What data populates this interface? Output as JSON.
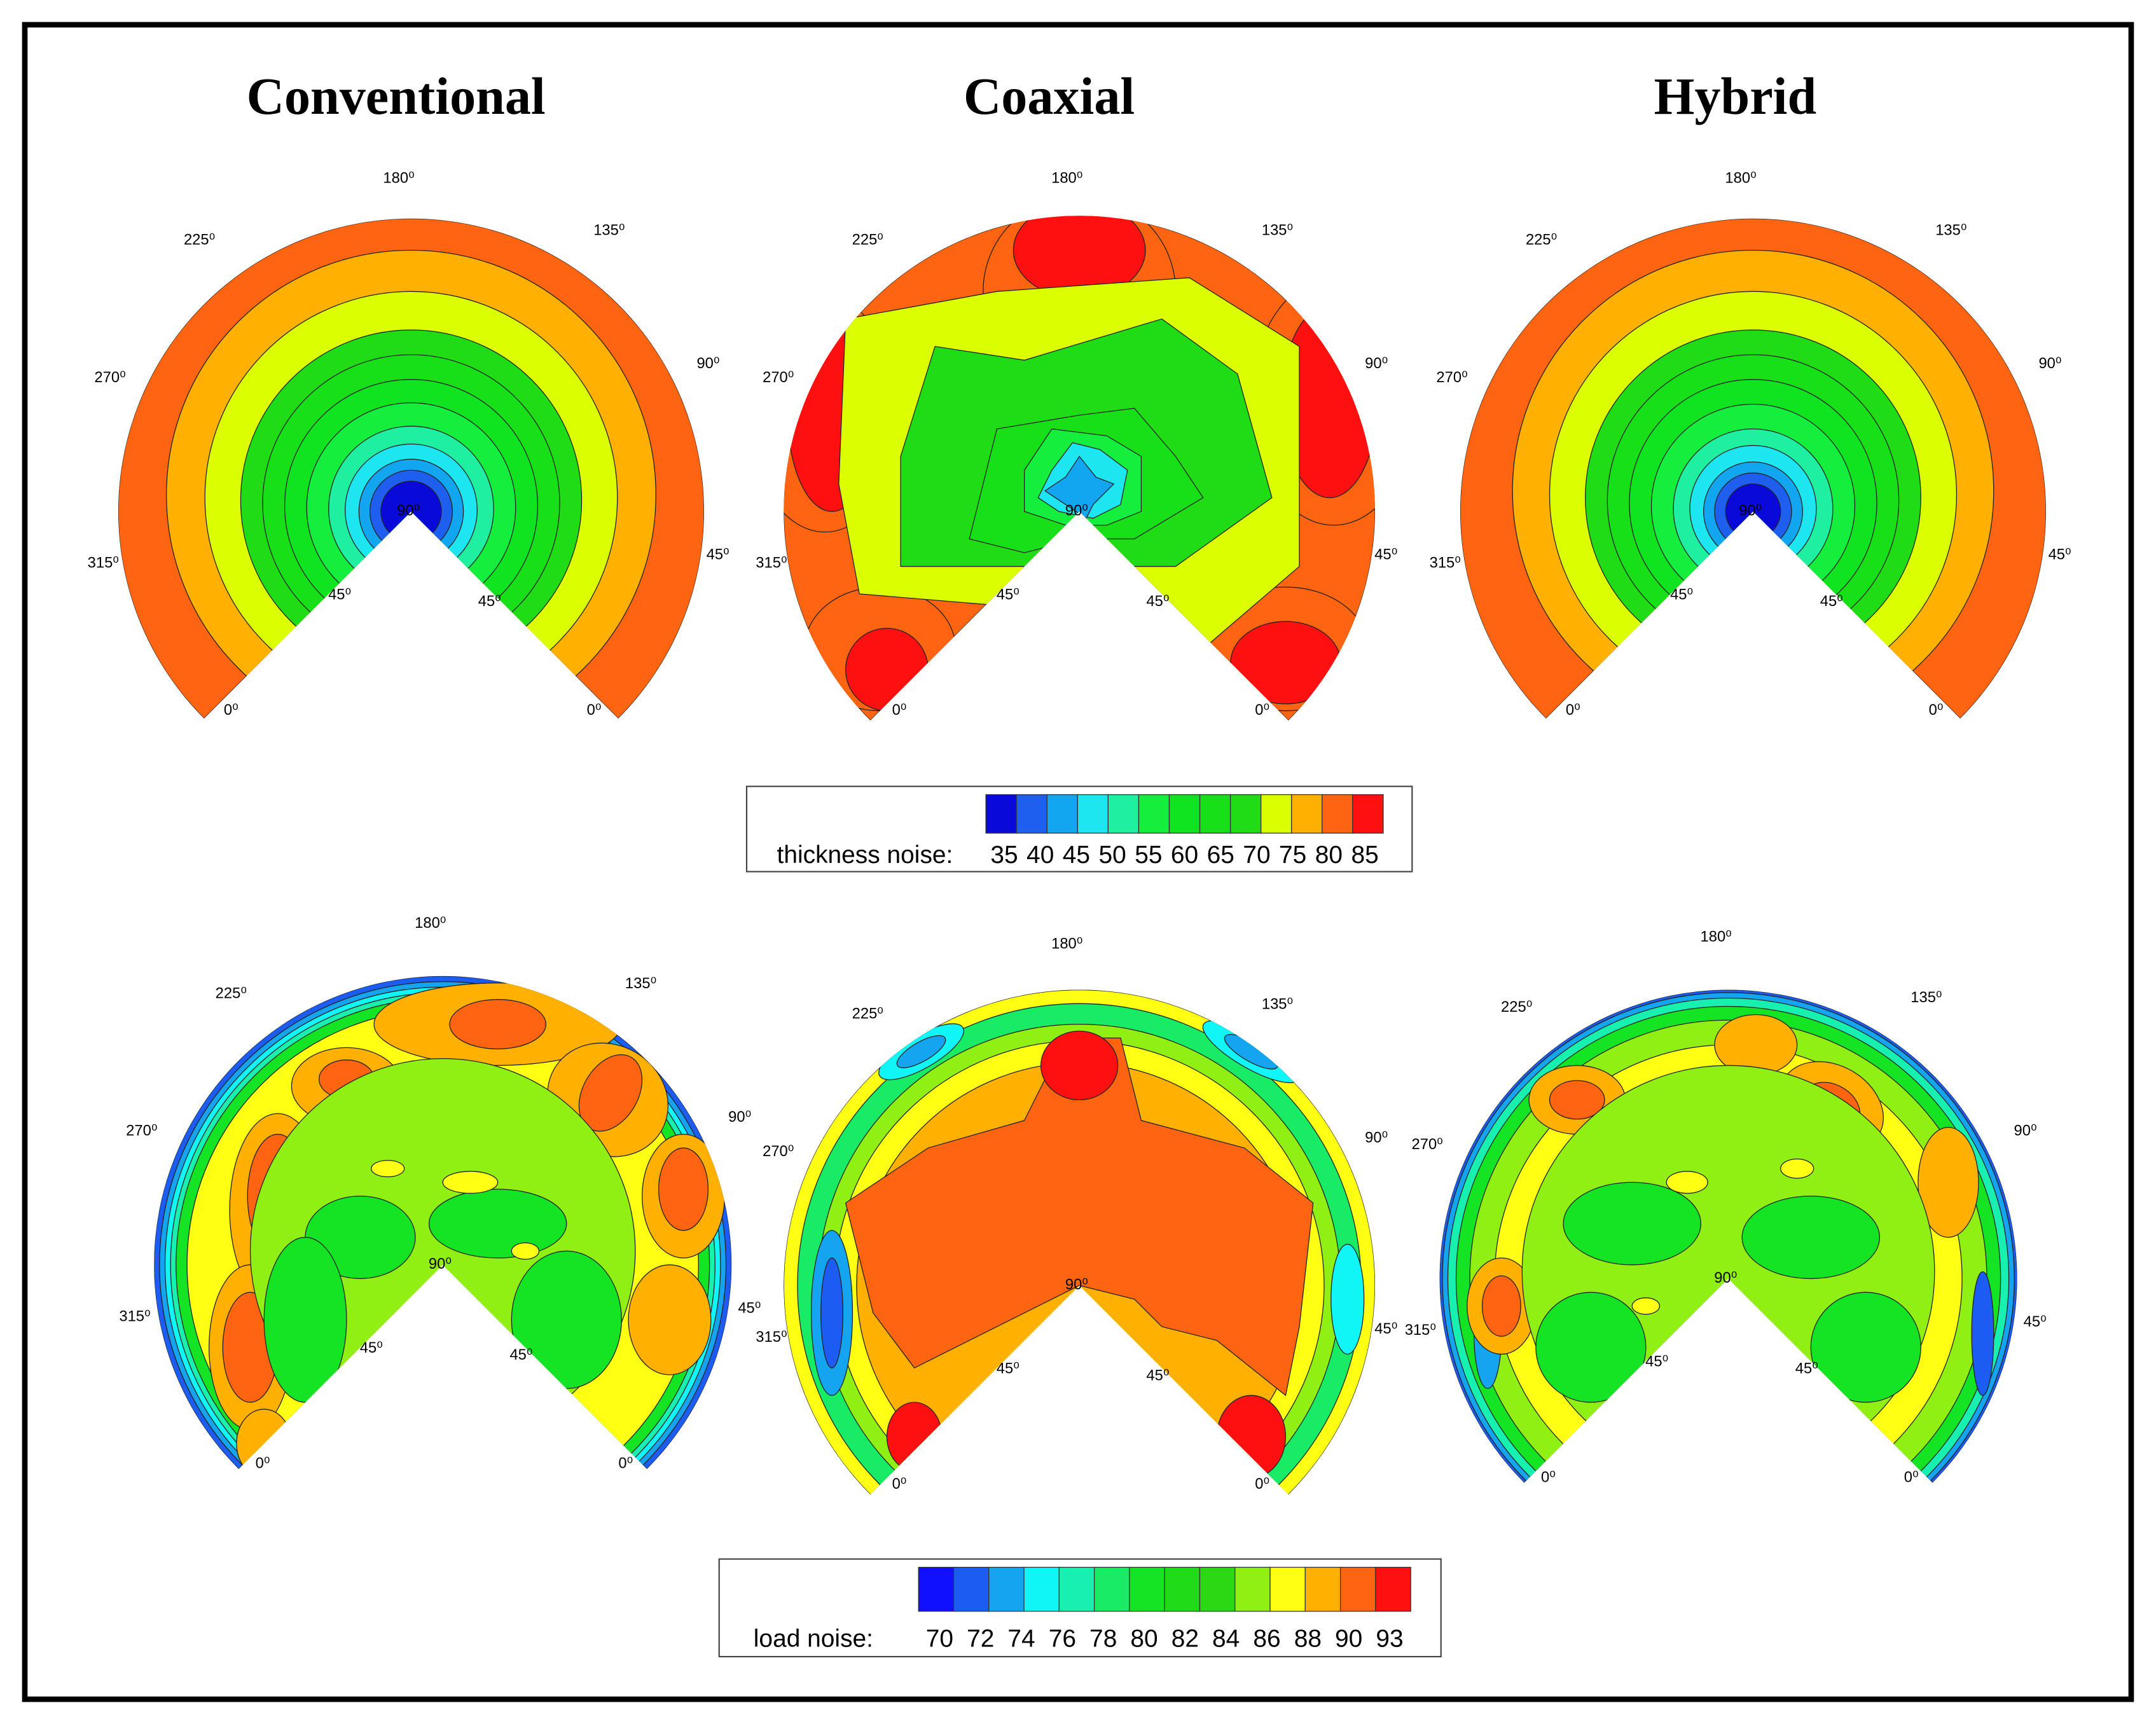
{
  "columns": [
    "Conventional",
    "Coaxial",
    "Hybrid"
  ],
  "angle_labels": [
    "180⁰",
    "225⁰",
    "135⁰",
    "270⁰",
    "90⁰",
    "315⁰",
    "45⁰",
    "0⁰",
    "0⁰",
    "45⁰",
    "45⁰",
    "90⁰"
  ],
  "thickness_legend": {
    "label": "thickness noise:",
    "levels": [
      35,
      40,
      45,
      50,
      55,
      60,
      65,
      70,
      75,
      80,
      85
    ],
    "colors": [
      "#0a0ad8",
      "#1e5ff0",
      "#12a6f0",
      "#1ee6f0",
      "#1ef0a0",
      "#14ee3c",
      "#10e420",
      "#18e018",
      "#20dc14",
      "#dcff00",
      "#ffb000",
      "#ff6410",
      "#ff1010"
    ]
  },
  "load_legend": {
    "label": "load noise:",
    "levels": [
      70,
      72,
      74,
      76,
      78,
      80,
      82,
      84,
      86,
      88,
      90,
      93
    ],
    "colors": [
      "#1010ff",
      "#1c5cf0",
      "#14a4f0",
      "#10f6f6",
      "#18f0b0",
      "#18ec64",
      "#14e424",
      "#20dc18",
      "#2cd814",
      "#90f014",
      "#ffff14",
      "#ffb000",
      "#ff6410",
      "#ff1010"
    ]
  }
}
